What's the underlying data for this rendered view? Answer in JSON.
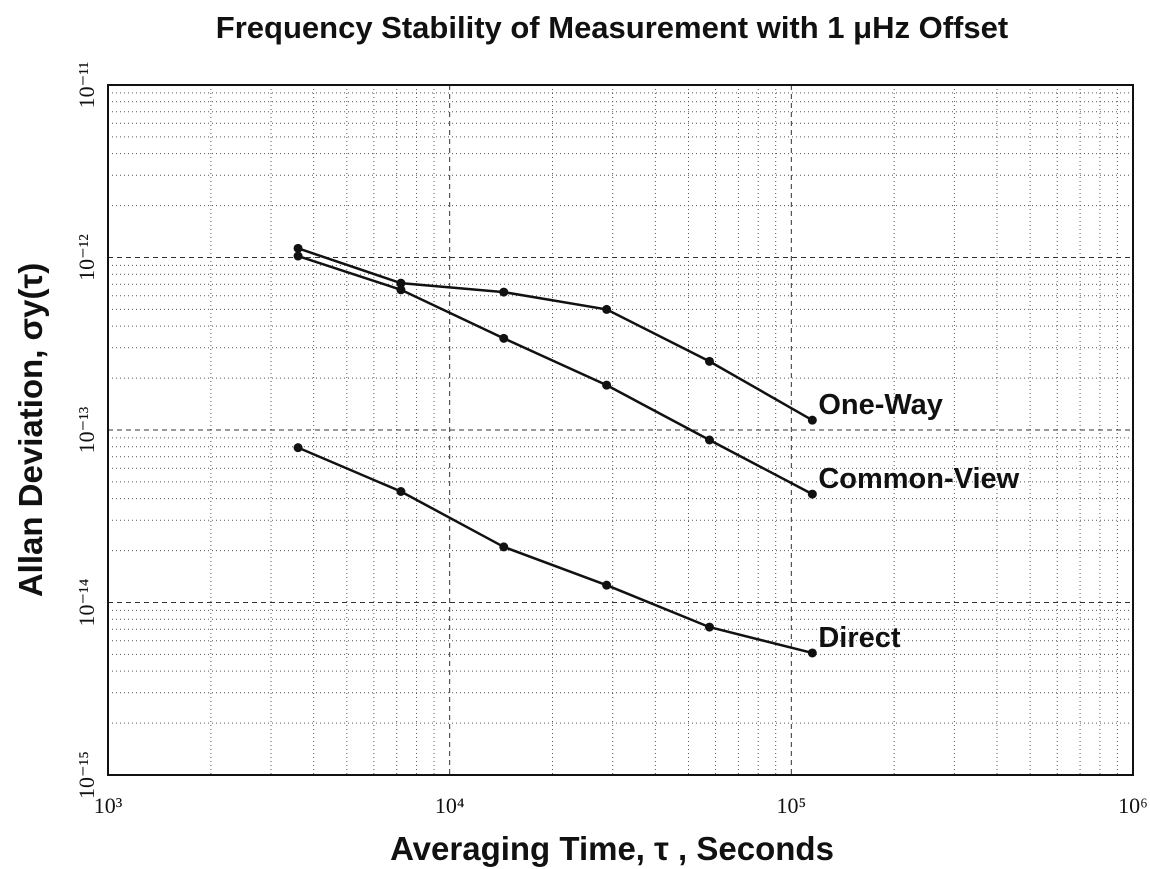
{
  "chart_data": {
    "type": "line",
    "title": "Frequency Stability of Measurement with 1 μHz Offset",
    "x_label": "Averaging Time, τ , Seconds",
    "y_label": "Allan Deviation, σy(τ)",
    "log_x": true,
    "log_y": true,
    "grid": true,
    "color": "#111111",
    "xlim": [
      1000,
      1000000
    ],
    "ylim": [
      1e-15,
      1e-11
    ],
    "xticks": [
      {
        "value": 1000,
        "label": "10³"
      },
      {
        "value": 10000,
        "label": "10⁴"
      },
      {
        "value": 100000,
        "label": "10⁵"
      },
      {
        "value": 1000000,
        "label": "10⁶"
      }
    ],
    "yticks": [
      {
        "value": 1e-15,
        "label": "10⁻¹⁵"
      },
      {
        "value": 1e-14,
        "label": "10⁻¹⁴"
      },
      {
        "value": 1e-13,
        "label": "10⁻¹³"
      },
      {
        "value": 1e-12,
        "label": "10⁻¹²"
      },
      {
        "value": 1e-11,
        "label": "10⁻¹¹"
      }
    ],
    "x": [
      3600,
      7200,
      14400,
      28800,
      57600,
      115200
    ],
    "series": [
      {
        "name": "One-Way",
        "color": "#111111",
        "values": [
          1.13e-12,
          7.1e-13,
          6.3e-13,
          5e-13,
          2.5e-13,
          1.14e-13
        ]
      },
      {
        "name": "Common-View",
        "color": "#111111",
        "values": [
          1.02e-12,
          6.5e-13,
          3.4e-13,
          1.82e-13,
          8.75e-14,
          4.25e-14
        ]
      },
      {
        "name": "Direct",
        "color": "#111111",
        "values": [
          7.9e-14,
          4.4e-14,
          2.1e-14,
          1.26e-14,
          7.2e-15,
          5.1e-15
        ]
      }
    ]
  }
}
